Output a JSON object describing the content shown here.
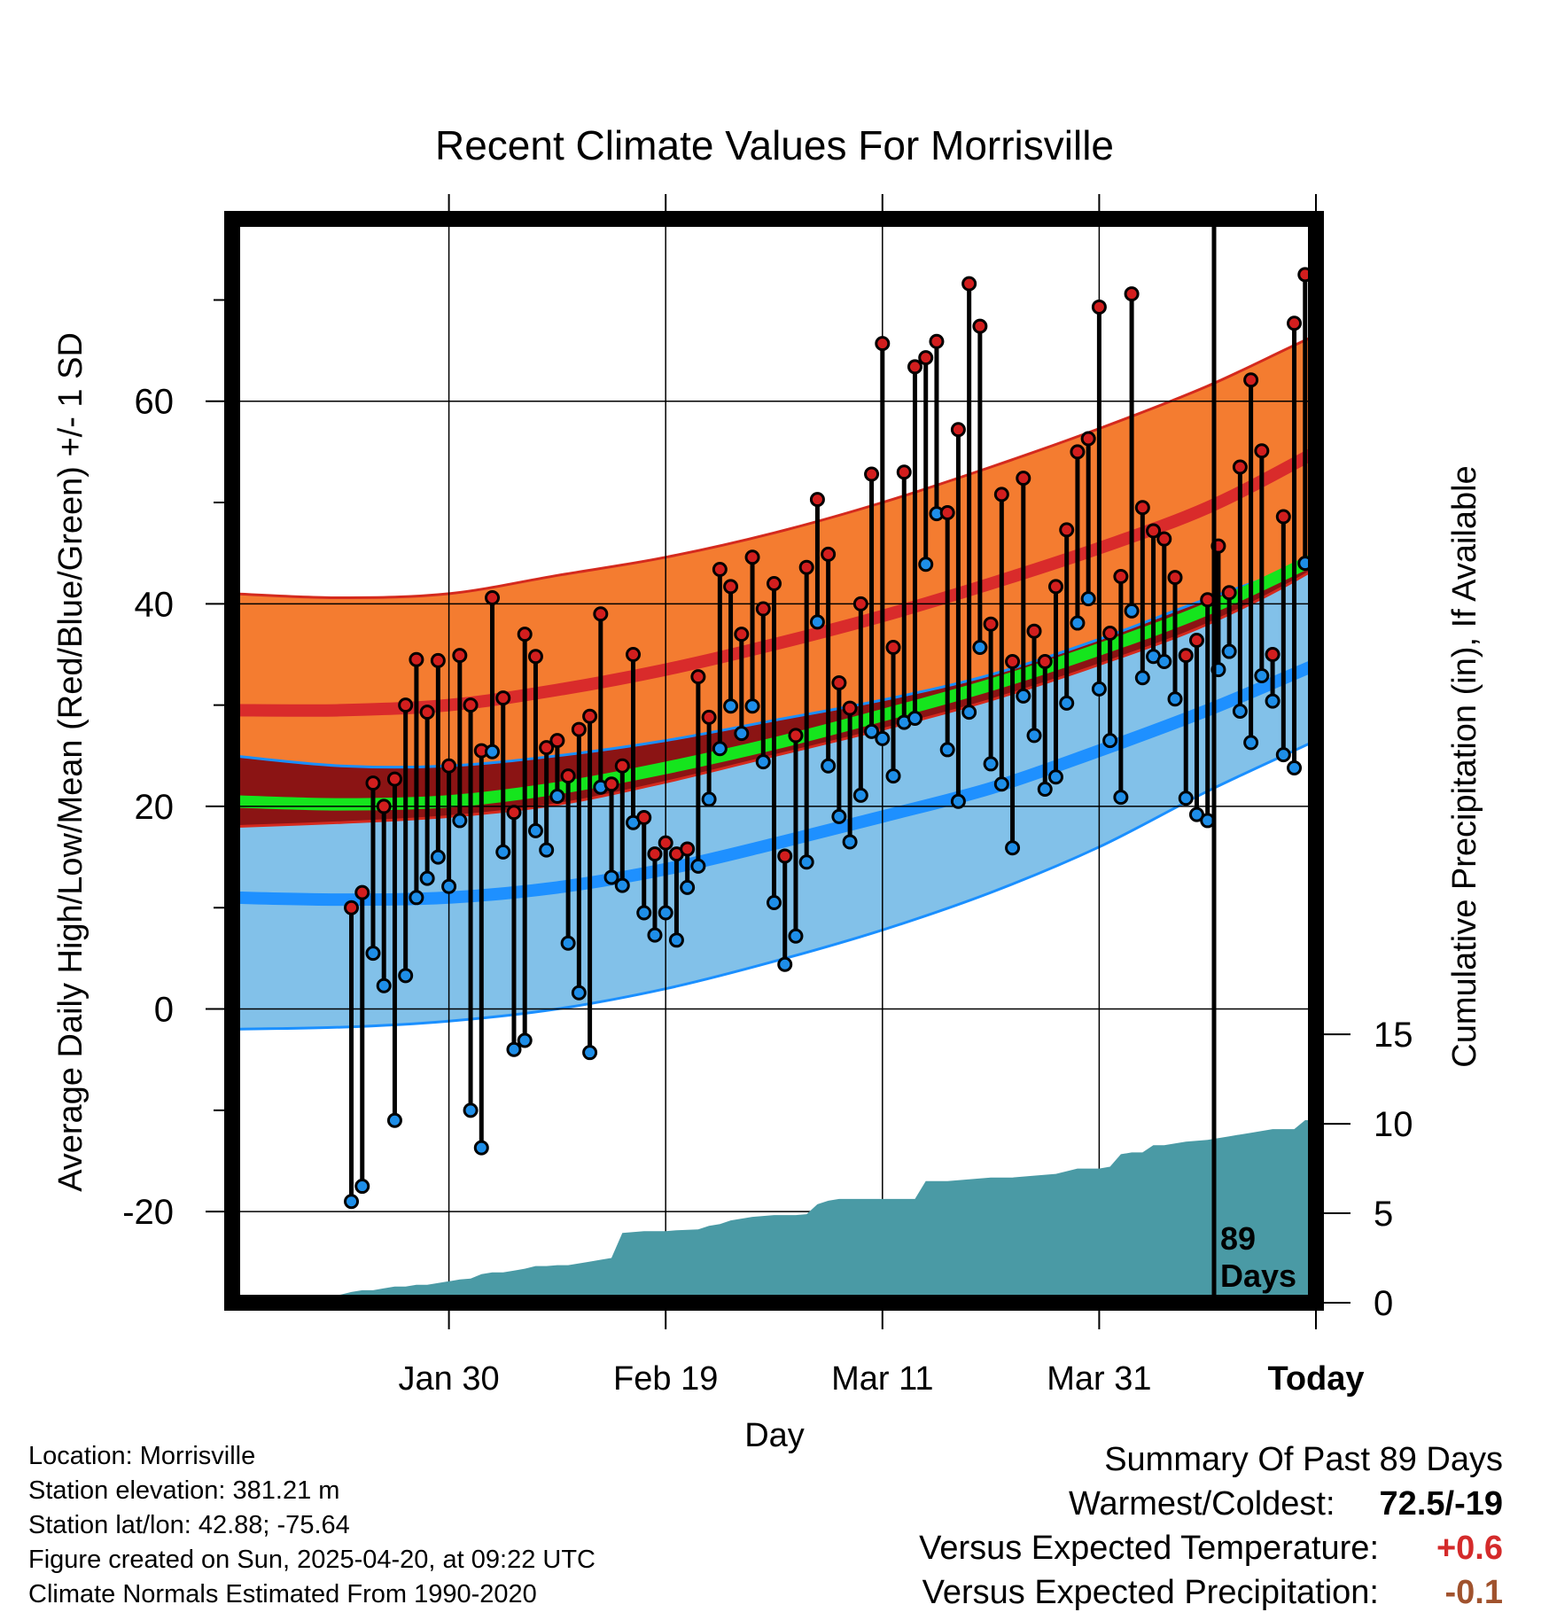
{
  "chart_data": {
    "type": "line",
    "title": "Recent Climate Values For Morrisville",
    "xlabel": "Day",
    "ylabel_left": "Average Daily High/Low/Mean (Red/Blue/Green) +/- 1 SD",
    "ylabel_right": "Cumulative Precipitation (in), If Available",
    "xlim": [
      -10,
      90
    ],
    "ylim_left": [
      -29,
      78
    ],
    "ylim_right": [
      0,
      60.57
    ],
    "x_ticks": [
      {
        "day": 10,
        "label": "Jan 30"
      },
      {
        "day": 30,
        "label": "Feb 19"
      },
      {
        "day": 50,
        "label": "Mar 11"
      },
      {
        "day": 70,
        "label": "Mar 31"
      },
      {
        "day": 90,
        "label": "Today",
        "bold": true
      }
    ],
    "y_ticks_left": [
      -20,
      0,
      20,
      40,
      60
    ],
    "y_ticks_right": [
      0,
      5,
      10,
      15
    ],
    "today_day": 90,
    "today_label_line1": "89",
    "today_label_line2": "Days",
    "normals": {
      "days": [
        -10,
        0,
        10,
        20,
        30,
        40,
        50,
        60,
        70,
        80,
        90,
        100
      ],
      "high_mean": [
        29.5,
        29.5,
        30.0,
        31.5,
        33.5,
        36.0,
        38.8,
        42.0,
        45.5,
        49.5,
        55.0,
        61.0
      ],
      "high_upper": [
        41.0,
        40.6,
        41.0,
        42.8,
        44.6,
        47.0,
        50.0,
        53.5,
        57.3,
        61.5,
        66.5,
        71.0
      ],
      "high_lower": [
        18.0,
        18.4,
        19.0,
        20.2,
        22.4,
        25.0,
        27.6,
        30.5,
        34.0,
        38.0,
        43.5,
        51.0
      ],
      "mean_mean": [
        20.5,
        20.2,
        20.5,
        21.8,
        23.8,
        26.2,
        29.0,
        32.0,
        35.5,
        39.5,
        44.5,
        50.0
      ],
      "low_mean": [
        11.0,
        10.8,
        11.0,
        12.0,
        13.8,
        16.3,
        19.0,
        21.8,
        25.5,
        29.5,
        34.0,
        38.5
      ],
      "low_upper": [
        25.0,
        24.0,
        24.0,
        25.0,
        26.5,
        28.5,
        30.5,
        33.0,
        36.5,
        40.5,
        44.0,
        46.0
      ],
      "low_lower": [
        -2.0,
        -1.8,
        -1.2,
        0.0,
        2.0,
        4.7,
        7.8,
        11.5,
        16.0,
        21.5,
        26.5,
        31.5
      ]
    },
    "daily_high": [
      10,
      11.5,
      22.3,
      20,
      22.7,
      30,
      34.5,
      29.3,
      34.4,
      24,
      34.9,
      30,
      25.5,
      40.6,
      30.7,
      19.4,
      37,
      34.8,
      25.8,
      26.5,
      23,
      27.6,
      28.9,
      39,
      22.2,
      24,
      35,
      18.9,
      15.3,
      16.4,
      15.3,
      15.8,
      32.8,
      28.8,
      43.4,
      41.7,
      37,
      44.6,
      39.5,
      42,
      15.1,
      27,
      43.6,
      50.3,
      44.9,
      32.2,
      29.7,
      40,
      52.8,
      65.7,
      35.7,
      53,
      63.4,
      64.3,
      65.9,
      49,
      57.2,
      71.6,
      67.4,
      38,
      50.8,
      34.3,
      52.4,
      37.3,
      34.3,
      41.7,
      47.3,
      55,
      56.3,
      69.3,
      37.1,
      42.7,
      70.6,
      49.5,
      47.2,
      46.4,
      42.6,
      34.9,
      36.4,
      40.4,
      45.7,
      41.1,
      53.5,
      62.1,
      55.1,
      35,
      48.6,
      67.7,
      72.5
    ],
    "daily_low": [
      -19,
      -17.5,
      5.5,
      2.3,
      -11,
      3.3,
      11,
      12.9,
      15,
      12.1,
      18.6,
      -10,
      -13.7,
      25.4,
      15.5,
      -4,
      -3.1,
      17.6,
      15.7,
      21,
      6.5,
      1.6,
      -4.3,
      21.9,
      13,
      12.2,
      18.4,
      9.5,
      7.3,
      9.5,
      6.8,
      12,
      14.1,
      20.7,
      25.7,
      29.9,
      27.2,
      29.9,
      24.4,
      10.5,
      4.4,
      7.2,
      14.5,
      38.2,
      24,
      19,
      16.5,
      21.1,
      27.4,
      26.7,
      23,
      28.3,
      28.7,
      43.9,
      48.9,
      25.6,
      20.5,
      29.3,
      35.7,
      24.2,
      22.2,
      15.9,
      30.9,
      27,
      21.7,
      22.9,
      30.2,
      38.1,
      40.5,
      31.6,
      26.5,
      20.9,
      39.3,
      32.7,
      34.8,
      34.3,
      30.6,
      20.8,
      19.2,
      18.6,
      33.5,
      35.3,
      29.4,
      26.3,
      32.9,
      30.4,
      25.1,
      23.8,
      44
    ],
    "cumulative_precip": {
      "days": [
        -3,
        -2,
        0,
        1,
        2,
        3,
        4,
        5,
        6,
        7,
        8,
        9,
        10,
        11,
        12,
        13,
        14,
        15,
        16,
        17,
        18,
        19,
        20,
        21,
        22,
        23,
        24,
        25,
        26,
        27,
        28,
        30,
        31,
        33,
        34,
        35,
        36,
        37,
        38,
        40,
        41,
        42,
        43,
        44,
        45,
        46,
        47,
        48,
        50,
        52,
        53,
        54,
        55,
        56,
        58,
        60,
        62,
        64,
        66,
        68,
        70,
        71,
        72,
        73,
        74,
        75,
        76,
        78,
        80,
        82,
        84,
        86,
        88,
        89,
        90,
        100
      ],
      "values": [
        0,
        0.3,
        0.45,
        0.6,
        0.7,
        0.7,
        0.8,
        0.9,
        0.9,
        1.0,
        1.0,
        1.1,
        1.2,
        1.3,
        1.35,
        1.6,
        1.7,
        1.7,
        1.8,
        1.9,
        2.05,
        2.05,
        2.1,
        2.1,
        2.2,
        2.3,
        2.4,
        2.5,
        3.9,
        3.95,
        4.0,
        4.0,
        4.05,
        4.1,
        4.3,
        4.4,
        4.6,
        4.7,
        4.8,
        4.9,
        4.9,
        4.9,
        4.95,
        5.5,
        5.7,
        5.8,
        5.8,
        5.8,
        5.8,
        5.8,
        5.8,
        6.8,
        6.8,
        6.8,
        6.9,
        7.0,
        7.0,
        7.1,
        7.2,
        7.5,
        7.5,
        7.6,
        8.3,
        8.4,
        8.4,
        8.8,
        8.8,
        9.0,
        9.1,
        9.3,
        9.5,
        9.7,
        9.7,
        10.2,
        10.2,
        10.2
      ]
    },
    "colors": {
      "high_band": "#f47c30",
      "high_mean": "#d92b2b",
      "high_edge": "#d42a1e",
      "low_band": "#82c1e9",
      "low_mean": "#1e90ff",
      "low_edge": "#1a8fff",
      "overlap": "#8b1414",
      "mean_line": "#15e51d",
      "precip": "#4a9aa5",
      "high_dot": "#d21e1e",
      "low_dot": "#1e8ee8"
    }
  },
  "footer": {
    "location": "Location: Morrisville",
    "elevation": "Station elevation: 381.21 m",
    "latlon": "Station lat/lon: 42.88; -75.64",
    "created": "Figure created on Sun, 2025-04-20, at 09:22 UTC",
    "normals_note": "Climate Normals Estimated From 1990-2020"
  },
  "summary": {
    "title": "Summary Of Past 89 Days",
    "warmest_label": "Warmest/Coldest:",
    "warmest_value": "72.5/-19",
    "temp_label": "Versus Expected Temperature:",
    "temp_value": "+0.6",
    "temp_color": "#d42a2a",
    "precip_label": "Versus Expected Precipitation:",
    "precip_value": "-0.1",
    "precip_color": "#a0522d"
  }
}
